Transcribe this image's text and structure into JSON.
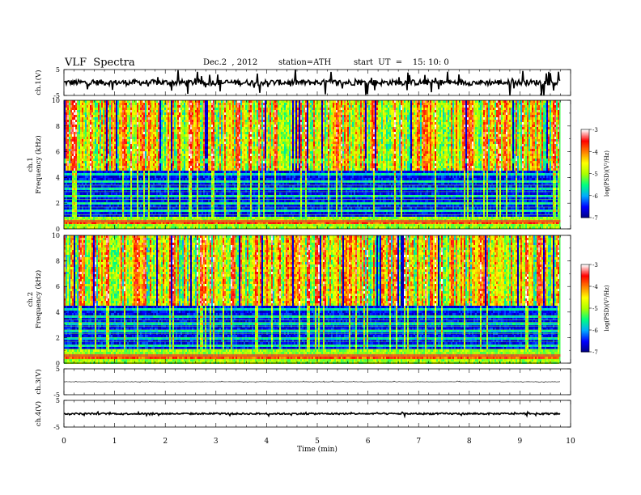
{
  "chart_data": {
    "type": "heatmap",
    "title": "VLF  Spectra",
    "header": {
      "date": "Dec.2  , 2012",
      "station": "station=ATH",
      "start": "start  UT  =    15: 10: 0"
    },
    "xlabel": "Time  (min)",
    "xlim": [
      0,
      10
    ],
    "xticks": [
      "0",
      "1",
      "2",
      "3",
      "4",
      "5",
      "6",
      "7",
      "8",
      "9",
      "10"
    ],
    "data_end_min": 9.8,
    "panels": [
      {
        "id": "ch1-waveform",
        "kind": "waveform",
        "ylabel": "ch.1(V)",
        "ylim": [
          -5,
          5
        ],
        "yticks": [
          "5",
          "-5"
        ],
        "baseline": 0,
        "noise_amplitude": 2.2,
        "spike_amplitude": 5
      },
      {
        "id": "ch1-spectrogram",
        "kind": "spectrogram",
        "ylabel": "ch.1\nFrequency  (kHz)",
        "ylim": [
          0,
          10
        ],
        "yticks": [
          "0",
          "2",
          "4",
          "6",
          "8",
          "10"
        ],
        "colorbar": {
          "label": "log(PSD)(V²/Hz)",
          "ticks": [
            "-3",
            "-4",
            "-5",
            "-6",
            "-7"
          ],
          "range": [
            -7,
            -3
          ]
        }
      },
      {
        "id": "ch2-spectrogram",
        "kind": "spectrogram",
        "ylabel": "ch.2\nFrequency  (kHz)",
        "ylim": [
          0,
          10
        ],
        "yticks": [
          "0",
          "2",
          "4",
          "6",
          "8",
          "10"
        ],
        "colorbar": {
          "label": "log(PSD)(V²/Hz)",
          "ticks": [
            "-3",
            "-4",
            "-5",
            "-6",
            "-7"
          ],
          "range": [
            -7,
            -3
          ]
        }
      },
      {
        "id": "ch3-waveform",
        "kind": "waveform",
        "ylabel": "ch.3(V)",
        "ylim": [
          -5,
          5
        ],
        "yticks": [
          "5",
          "-5"
        ],
        "baseline": 0,
        "noise_amplitude": 0.15,
        "spike_amplitude": 0.3
      },
      {
        "id": "ch4-waveform",
        "kind": "waveform",
        "ylabel": "ch.4(V)",
        "ylim": [
          -5,
          5
        ],
        "yticks": [
          "5",
          "-5"
        ],
        "baseline": 0,
        "noise_amplitude": 0.6,
        "spike_amplitude": 0.7
      }
    ],
    "colormap": [
      "#000080",
      "#0000ff",
      "#00aaff",
      "#00ff80",
      "#aaff00",
      "#ffff00",
      "#ff8000",
      "#ff0000",
      "#ffffff"
    ]
  }
}
